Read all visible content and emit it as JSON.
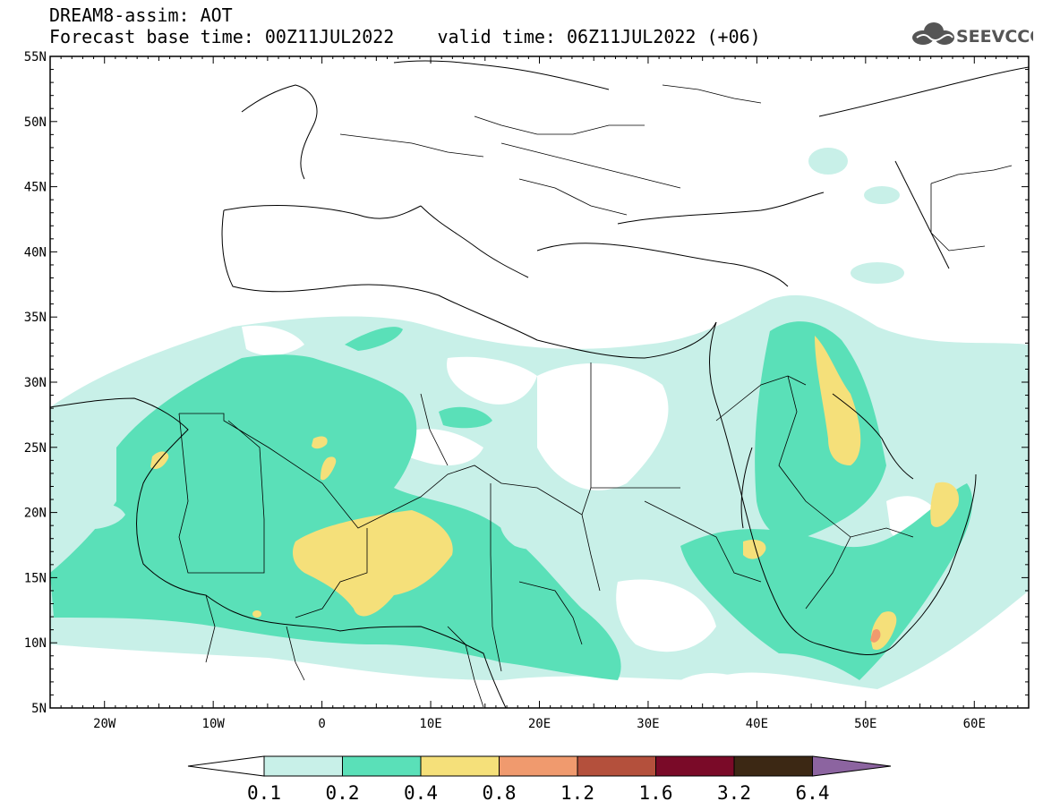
{
  "title": {
    "line1": "DREAM8-assim: AOT",
    "line2_base": "Forecast base time: 00Z11JUL2022",
    "line2_valid": "valid time: 06Z11JUL2022 (+06)"
  },
  "logo": {
    "text": "SEEVCCC",
    "icon": "cloud-icon"
  },
  "map": {
    "projection": "cylindrical",
    "lon_range": [
      -25,
      65
    ],
    "lat_range": [
      5,
      55
    ],
    "lat_labels": [
      "5N",
      "10N",
      "15N",
      "20N",
      "25N",
      "30N",
      "35N",
      "40N",
      "45N",
      "50N",
      "55N"
    ],
    "lon_labels": [
      "20W",
      "10W",
      "0",
      "10E",
      "20E",
      "30E",
      "40E",
      "50E",
      "60E"
    ]
  },
  "colorbar": {
    "colors": [
      "#ffffff",
      "#c8f0e8",
      "#5ae0b8",
      "#f5e07a",
      "#f09a6e",
      "#b4503c",
      "#7a0a28",
      "#3c2814",
      "#8c64a0"
    ],
    "labels": [
      "0.1",
      "0.2",
      "0.4",
      "0.8",
      "1.2",
      "1.6",
      "3.2",
      "6.4"
    ]
  }
}
